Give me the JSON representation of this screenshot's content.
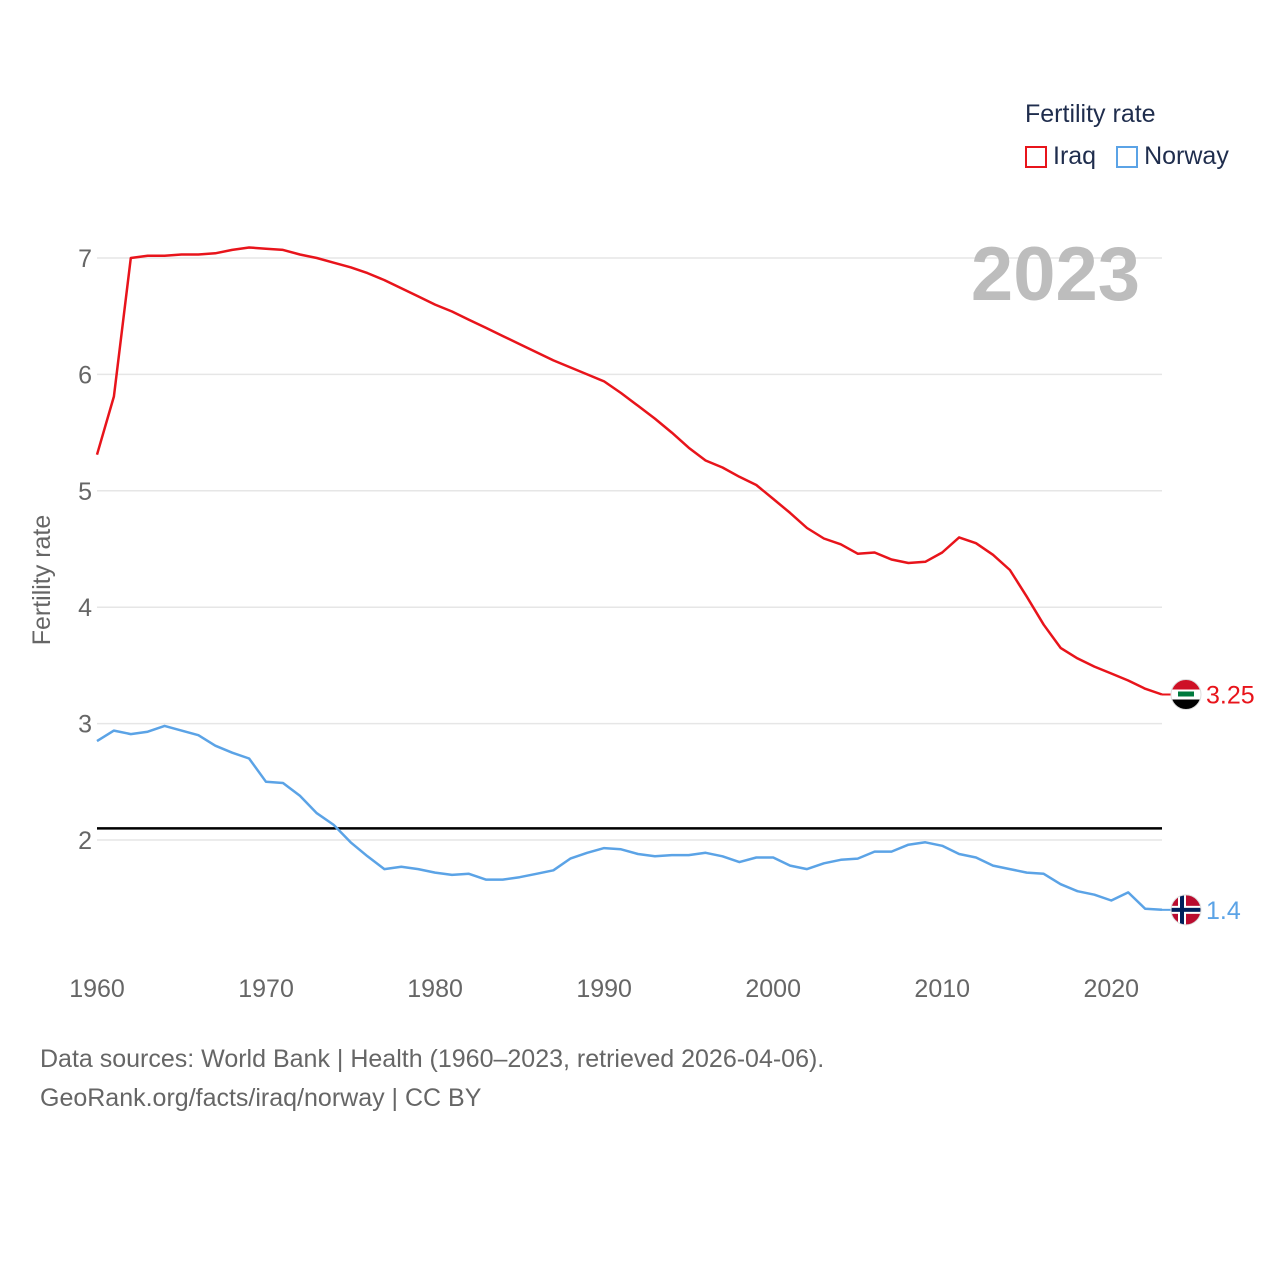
{
  "legend": {
    "title": "Fertility rate",
    "items": [
      {
        "label": "Iraq",
        "color": "#e8141b"
      },
      {
        "label": "Norway",
        "color": "#5ba3e6"
      }
    ]
  },
  "year_label": "2023",
  "footer": {
    "line1": "Data sources: World Bank | Health (1960–2023, retrieved 2026-04-06).",
    "line2": "GeoRank.org/facts/iraq/norway | CC BY"
  },
  "chart_data": {
    "type": "line",
    "ylabel": "Fertility rate",
    "xlabel": "",
    "xlim": [
      1960,
      2023
    ],
    "ylim": [
      1,
      7.5
    ],
    "x_ticks": [
      1960,
      1970,
      1980,
      1990,
      2000,
      2010,
      2020
    ],
    "y_ticks": [
      2,
      3,
      4,
      5,
      6,
      7
    ],
    "reference_line": {
      "y": 2.1,
      "color": "#000000"
    },
    "series": [
      {
        "name": "Iraq",
        "color": "#e8141b",
        "end_label": "3.25",
        "flag": "iraq-flag",
        "x": [
          1960,
          1961,
          1962,
          1963,
          1964,
          1965,
          1966,
          1967,
          1968,
          1969,
          1970,
          1971,
          1972,
          1973,
          1974,
          1975,
          1976,
          1977,
          1978,
          1979,
          1980,
          1981,
          1982,
          1983,
          1984,
          1985,
          1986,
          1987,
          1988,
          1989,
          1990,
          1991,
          1992,
          1993,
          1994,
          1995,
          1996,
          1997,
          1998,
          1999,
          2000,
          2001,
          2002,
          2003,
          2004,
          2005,
          2006,
          2007,
          2008,
          2009,
          2010,
          2011,
          2012,
          2013,
          2014,
          2015,
          2016,
          2017,
          2018,
          2019,
          2020,
          2021,
          2022,
          2023
        ],
        "values": [
          5.31,
          5.81,
          7.0,
          7.02,
          7.02,
          7.03,
          7.03,
          7.04,
          7.07,
          7.09,
          7.08,
          7.07,
          7.03,
          7.0,
          6.96,
          6.92,
          6.87,
          6.81,
          6.74,
          6.67,
          6.6,
          6.54,
          6.47,
          6.4,
          6.33,
          6.26,
          6.19,
          6.12,
          6.06,
          6.0,
          5.94,
          5.84,
          5.73,
          5.62,
          5.5,
          5.37,
          5.26,
          5.2,
          5.12,
          5.05,
          4.93,
          4.81,
          4.68,
          4.59,
          4.54,
          4.46,
          4.47,
          4.41,
          4.38,
          4.39,
          4.47,
          4.6,
          4.55,
          4.45,
          4.32,
          4.09,
          3.85,
          3.65,
          3.56,
          3.49,
          3.43,
          3.37,
          3.3,
          3.25
        ]
      },
      {
        "name": "Norway",
        "color": "#5ba3e6",
        "end_label": "1.4",
        "flag": "norway-flag",
        "x": [
          1960,
          1961,
          1962,
          1963,
          1964,
          1965,
          1966,
          1967,
          1968,
          1969,
          1970,
          1971,
          1972,
          1973,
          1974,
          1975,
          1976,
          1977,
          1978,
          1979,
          1980,
          1981,
          1982,
          1983,
          1984,
          1985,
          1986,
          1987,
          1988,
          1989,
          1990,
          1991,
          1992,
          1993,
          1994,
          1995,
          1996,
          1997,
          1998,
          1999,
          2000,
          2001,
          2002,
          2003,
          2004,
          2005,
          2006,
          2007,
          2008,
          2009,
          2010,
          2011,
          2012,
          2013,
          2014,
          2015,
          2016,
          2017,
          2018,
          2019,
          2020,
          2021,
          2022,
          2023
        ],
        "values": [
          2.85,
          2.94,
          2.91,
          2.93,
          2.98,
          2.94,
          2.9,
          2.81,
          2.75,
          2.7,
          2.5,
          2.49,
          2.38,
          2.23,
          2.13,
          1.98,
          1.86,
          1.75,
          1.77,
          1.75,
          1.72,
          1.7,
          1.71,
          1.66,
          1.66,
          1.68,
          1.71,
          1.74,
          1.84,
          1.89,
          1.93,
          1.92,
          1.88,
          1.86,
          1.87,
          1.87,
          1.89,
          1.86,
          1.81,
          1.85,
          1.85,
          1.78,
          1.75,
          1.8,
          1.83,
          1.84,
          1.9,
          1.9,
          1.96,
          1.98,
          1.95,
          1.88,
          1.85,
          1.78,
          1.75,
          1.72,
          1.71,
          1.62,
          1.56,
          1.53,
          1.48,
          1.55,
          1.41,
          1.4
        ]
      }
    ]
  }
}
